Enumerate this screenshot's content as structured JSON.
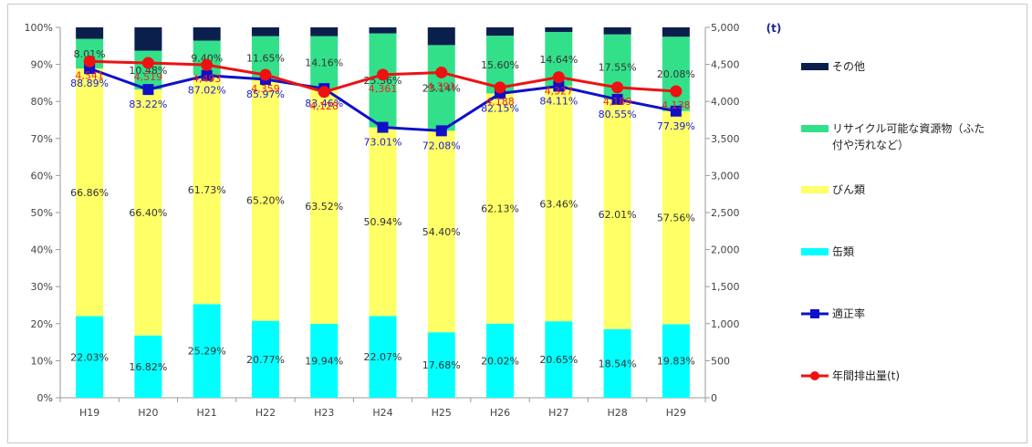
{
  "chart_data": {
    "type": "bar",
    "categories": [
      "H19",
      "H20",
      "H21",
      "H22",
      "H23",
      "H24",
      "H25",
      "H26",
      "H27",
      "H28",
      "H29"
    ],
    "series": [
      {
        "name": "缶類",
        "kind": "stacked-bar",
        "color": "#00FFFF",
        "values": [
          22.03,
          16.82,
          25.29,
          20.77,
          19.94,
          22.07,
          17.68,
          20.02,
          20.65,
          18.54,
          19.83
        ],
        "labels": [
          "22.03%",
          "16.82%",
          "25.29%",
          "20.77%",
          "19.94%",
          "22.07%",
          "17.68%",
          "20.02%",
          "20.65%",
          "18.54%",
          "19.83%"
        ]
      },
      {
        "name": "びん類",
        "kind": "stacked-bar",
        "color": "#FFFF66",
        "values": [
          66.86,
          66.4,
          61.73,
          65.2,
          63.52,
          50.94,
          54.4,
          62.13,
          63.46,
          62.01,
          57.56
        ],
        "labels": [
          "66.86%",
          "66.40%",
          "61.73%",
          "65.20%",
          "63.52%",
          "50.94%",
          "54.40%",
          "62.13%",
          "63.46%",
          "62.01%",
          "57.56%"
        ]
      },
      {
        "name": "リサイクル可能な資源物（ふた付や汚れなど）",
        "kind": "stacked-bar",
        "color": "#33E08A",
        "values": [
          8.01,
          10.48,
          9.4,
          11.65,
          14.16,
          25.36,
          23.14,
          15.6,
          14.64,
          17.55,
          20.08
        ],
        "labels": [
          "8.01%",
          "10.48%",
          "9.40%",
          "11.65%",
          "14.16%",
          "25.36%",
          "23.14%",
          "15.60%",
          "14.64%",
          "17.55%",
          "20.08%"
        ]
      },
      {
        "name": "その他",
        "kind": "stacked-bar",
        "color": "#0B1F4D",
        "values": [
          3.1,
          6.3,
          3.58,
          2.38,
          2.38,
          1.63,
          4.78,
          2.25,
          1.25,
          1.9,
          2.53
        ]
      },
      {
        "name": "適正率",
        "kind": "line-left",
        "color": "#1010C8",
        "values": [
          88.89,
          83.22,
          87.02,
          85.97,
          83.46,
          73.01,
          72.08,
          82.15,
          84.11,
          80.55,
          77.39
        ],
        "labels": [
          "88.89%",
          "83.22%",
          "87.02%",
          "85.97%",
          "83.46%",
          "73.01%",
          "72.08%",
          "82.15%",
          "84.11%",
          "80.55%",
          "77.39%"
        ]
      },
      {
        "name": "年間排出量(t)",
        "kind": "line-right",
        "color": "#EE1111",
        "values": [
          4541,
          4519,
          4493,
          4359,
          4128,
          4361,
          4391,
          4188,
          4327,
          4189,
          4138
        ],
        "labels": [
          "4,541",
          "4,519",
          "4,493",
          "4,359",
          "4,128",
          "4,361",
          "4,391",
          "4,188",
          "4,327",
          "4,189",
          "4,138"
        ]
      }
    ],
    "y_left": {
      "range": [
        0,
        100
      ],
      "ticks": [
        "0%",
        "10%",
        "20%",
        "30%",
        "40%",
        "50%",
        "60%",
        "70%",
        "80%",
        "90%",
        "100%"
      ]
    },
    "y_right": {
      "range": [
        0,
        5000
      ],
      "ticks": [
        "0",
        "500",
        "1,000",
        "1,500",
        "2,000",
        "2,500",
        "3,000",
        "3,500",
        "4,000",
        "4,500",
        "5,000"
      ]
    },
    "unit_mark": "(t)",
    "legend": {
      "position": "right",
      "order": [
        {
          "name": "その他",
          "marker": "bar"
        },
        {
          "name": "リサイクル可能な資源物（ふた",
          "name_line2": "付や汚れなど）",
          "marker": "bar"
        },
        {
          "name": "びん類",
          "marker": "bar"
        },
        {
          "name": "缶類",
          "marker": "bar"
        },
        {
          "name": "適正率",
          "marker": "line-square"
        },
        {
          "name": "年間排出量(t)",
          "marker": "line-circle"
        }
      ]
    },
    "grid": false
  }
}
